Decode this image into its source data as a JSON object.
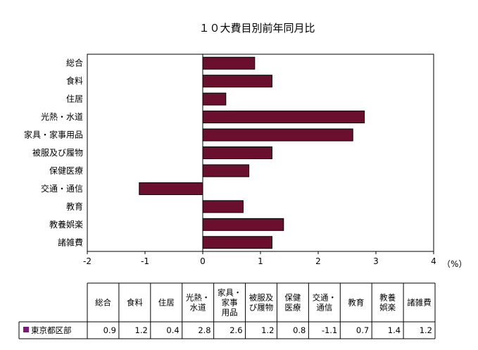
{
  "chart_data": {
    "type": "bar",
    "orientation": "horizontal",
    "title": "１０大費目別前年同月比",
    "categories": [
      "総合",
      "食料",
      "住居",
      "光熱・水道",
      "家具・家事用品",
      "被服及び履物",
      "保健医療",
      "交通・通信",
      "教育",
      "教養娯楽",
      "諸雑費"
    ],
    "series": [
      {
        "name": "東京都区部",
        "values": [
          0.9,
          1.2,
          0.4,
          2.8,
          2.6,
          1.2,
          0.8,
          -1.1,
          0.7,
          1.4,
          1.2
        ],
        "color": "#6b0f2e"
      }
    ],
    "xlim": [
      -2,
      4
    ],
    "xticks": [
      "-2",
      "-1",
      "0",
      "1",
      "2",
      "3",
      "4"
    ],
    "x_unit": "（%）",
    "grid": false
  },
  "table": {
    "headers": [
      [
        "総合"
      ],
      [
        "食料"
      ],
      [
        "住居"
      ],
      [
        "光熱・",
        "水道"
      ],
      [
        "家具・",
        "家事",
        "用品"
      ],
      [
        "被服及",
        "び履物"
      ],
      [
        "保健",
        "医療"
      ],
      [
        "交通・",
        "通信"
      ],
      [
        "教育"
      ],
      [
        "教養",
        "娯楽"
      ],
      [
        "諸雑費"
      ]
    ],
    "row_label": "東京都区部",
    "row_values": [
      "0.9",
      "1.2",
      "0.4",
      "2.8",
      "2.6",
      "1.2",
      "0.8",
      "-1.1",
      "0.7",
      "1.4",
      "1.2"
    ],
    "legend_color": "#7a1a7a"
  }
}
